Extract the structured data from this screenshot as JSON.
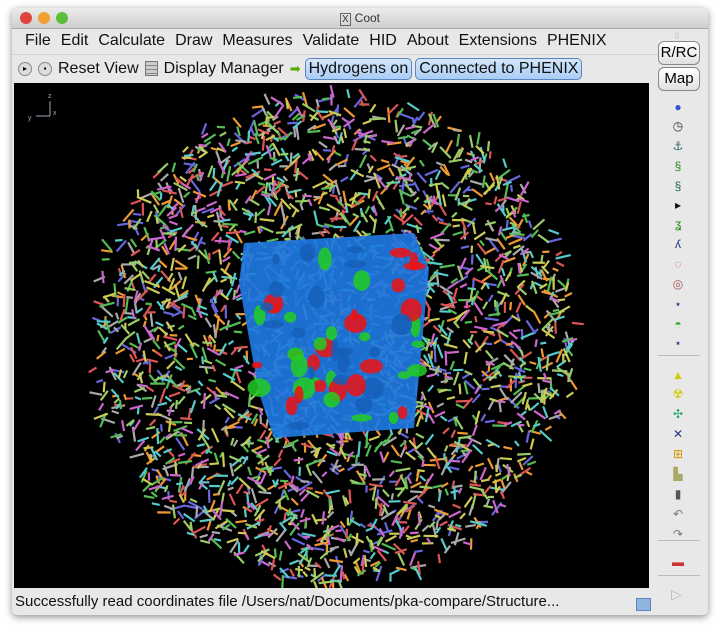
{
  "window": {
    "title": "Coot",
    "title_icon": "x11-icon"
  },
  "menu": [
    "File",
    "Edit",
    "Calculate",
    "Draw",
    "Measures",
    "Validate",
    "HID",
    "About",
    "Extensions",
    "PHENIX"
  ],
  "toolbar": {
    "reset_view": "Reset View",
    "display_manager": "Display Manager",
    "hydrogens": "Hydrogens on",
    "phenix": "Connected to PHENIX"
  },
  "side": {
    "rrc": "R/RC",
    "map": "Map",
    "icons": [
      "refine-regularize-icon",
      "rigid-body-fit-icon",
      "anchor-icon",
      "real-space-refine-icon",
      "auto-fit-rotamer-icon",
      "expand-arrow-icon",
      "rotamer-icon",
      "flip-peptide-icon",
      "torsion-general-icon",
      "rotate-translate-icon",
      "backrub-icon",
      "side-chain-icon",
      "edit-chi-icon",
      "add-water-icon",
      "radioactive-icon",
      "add-atom-icon",
      "add-alt-conf-icon",
      "add-terminal-icon",
      "mutate-icon",
      "delete-icon",
      "undo-icon",
      "redo-icon",
      "map-color-icon",
      "expand-icon"
    ]
  },
  "axes": {
    "z": "z",
    "y": "y",
    "x": "x"
  },
  "status": "Successfully read coordinates file /Users/nat/Documents/pka-compare/Structure..."
}
